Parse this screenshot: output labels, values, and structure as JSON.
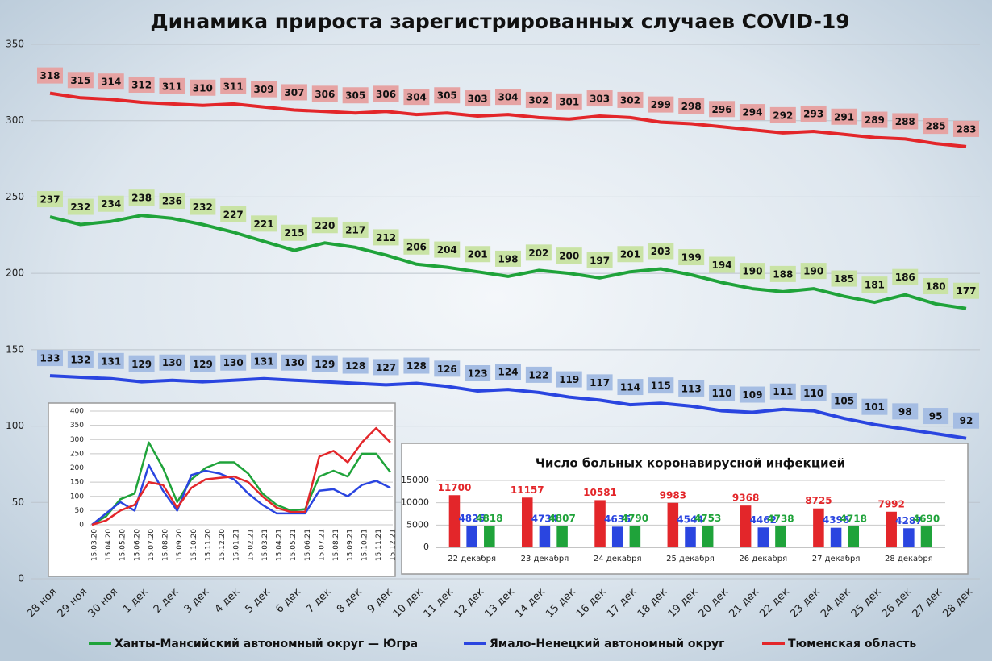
{
  "chart_data": [
    {
      "type": "line",
      "title": "Динамика прироста зарегистрированных случаев COVID-19",
      "categories": [
        "28 ноя",
        "29 ноя",
        "30 ноя",
        "1 дек",
        "2 дек",
        "3 дек",
        "4 дек",
        "5 дек",
        "6 дек",
        "7 дек",
        "8 дек",
        "9 дек",
        "10 дек",
        "11 дек",
        "12 дек",
        "13 дек",
        "14 дек",
        "15 дек",
        "16 дек",
        "17 дек",
        "18 дек",
        "19 дек",
        "20 дек",
        "21 дек",
        "22 дек",
        "23 дек",
        "24 дек",
        "25 дек",
        "26 дек",
        "27 дек",
        "28 дек"
      ],
      "series": [
        {
          "name": "Ханты-Мансийский автономный округ — Югра",
          "color": "#1fa33a",
          "label_color": "#c9e3a5",
          "values": [
            237,
            232,
            234,
            238,
            236,
            232,
            227,
            221,
            215,
            220,
            217,
            212,
            206,
            204,
            201,
            198,
            202,
            200,
            197,
            201,
            203,
            199,
            194,
            190,
            188,
            190,
            185,
            181,
            186,
            180,
            177
          ]
        },
        {
          "name": "Ямало-Ненецкий автономный округ",
          "color": "#2a45e0",
          "label_color": "#a5bde3",
          "values": [
            133,
            132,
            131,
            129,
            130,
            129,
            130,
            131,
            130,
            129,
            128,
            127,
            128,
            126,
            123,
            124,
            122,
            119,
            117,
            114,
            115,
            113,
            110,
            109,
            111,
            110,
            105,
            101,
            98,
            95,
            92
          ]
        },
        {
          "name": "Тюменская область",
          "color": "#e3262a",
          "label_color": "#e6a3a3",
          "values": [
            318,
            315,
            314,
            312,
            311,
            310,
            311,
            309,
            307,
            306,
            305,
            306,
            304,
            305,
            303,
            304,
            302,
            301,
            303,
            302,
            299,
            298,
            296,
            294,
            292,
            293,
            291,
            289,
            288,
            285,
            283
          ]
        }
      ],
      "ylim": [
        0,
        350
      ],
      "yticks": [
        0,
        50,
        100,
        150,
        200,
        250,
        300,
        350
      ],
      "grid": true,
      "data_labels": true,
      "legend": "bottom"
    },
    {
      "type": "line",
      "categories": [
        "15.03.20",
        "15.04.20",
        "15.05.20",
        "15.06.20",
        "15.07.20",
        "15.08.20",
        "15.09.20",
        "15.10.20",
        "15.11.20",
        "15.12.20",
        "15.01.21",
        "15.02.21",
        "15.03.21",
        "15.04.21",
        "15.05.21",
        "15.06.21",
        "15.07.21",
        "15.08.21",
        "15.09.21",
        "15.10.21",
        "15.11.21",
        "15.12.21"
      ],
      "series": [
        {
          "color": "#1fa33a",
          "values": [
            0,
            30,
            90,
            110,
            290,
            200,
            80,
            160,
            200,
            220,
            220,
            180,
            110,
            70,
            50,
            55,
            170,
            190,
            170,
            250,
            250,
            185
          ]
        },
        {
          "color": "#2a45e0",
          "values": [
            0,
            40,
            80,
            50,
            210,
            120,
            50,
            175,
            190,
            180,
            160,
            110,
            70,
            40,
            40,
            40,
            120,
            125,
            100,
            140,
            155,
            130
          ]
        },
        {
          "color": "#e3262a",
          "values": [
            0,
            15,
            50,
            70,
            150,
            140,
            60,
            130,
            160,
            165,
            170,
            150,
            100,
            60,
            45,
            45,
            240,
            260,
            220,
            290,
            340,
            290
          ]
        }
      ],
      "ylim": [
        0,
        400
      ],
      "yticks": [
        0,
        50,
        100,
        150,
        200,
        250,
        300,
        350,
        400
      ],
      "grid": true,
      "data_labels": false
    },
    {
      "type": "bar",
      "title": "Число больных коронавирусной  инфекцией",
      "categories": [
        "22 декабря",
        "23 декабря",
        "24 декабря",
        "25 декабря",
        "26 декабря",
        "27 декабря",
        "28 декабря"
      ],
      "series": [
        {
          "color": "#e3262a",
          "values": [
            11700,
            11157,
            10581,
            9983,
            9368,
            8725,
            7992
          ]
        },
        {
          "color": "#2a45e0",
          "values": [
            4825,
            4734,
            4635,
            4544,
            4462,
            4396,
            4287
          ]
        },
        {
          "color": "#1fa33a",
          "values": [
            4818,
            4807,
            4790,
            4753,
            4738,
            4718,
            4690
          ]
        }
      ],
      "ylim": [
        0,
        15000
      ],
      "yticks": [
        0,
        5000,
        10000,
        15000
      ],
      "grid": true,
      "data_labels": true
    }
  ]
}
